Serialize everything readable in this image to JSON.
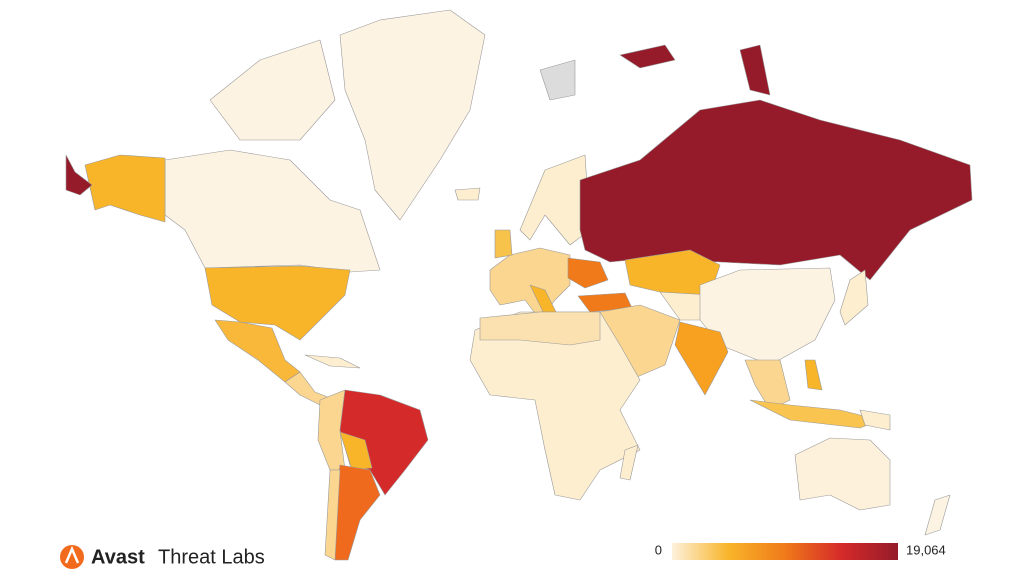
{
  "brand": {
    "name": "Avast",
    "product": "Threat Labs"
  },
  "legend": {
    "min": 0,
    "max": {
      "value": 19064,
      "label": "19,064"
    },
    "colors": [
      "#fdf1dc",
      "#f8b52a",
      "#f07a1a",
      "#d52a2a",
      "#951b2a"
    ]
  }
}
